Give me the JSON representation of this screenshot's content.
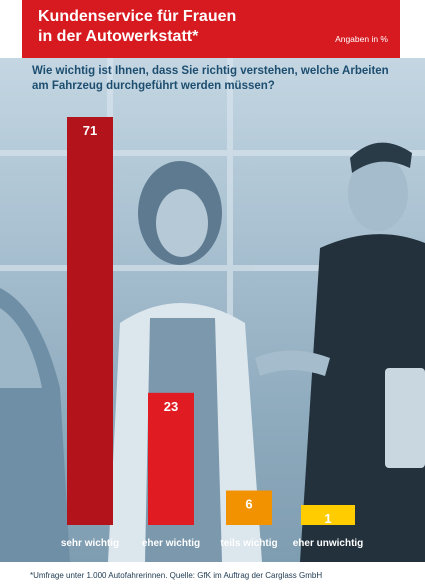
{
  "header": {
    "title_line1": "Kundenservice für Frauen",
    "title_line2": "in der Autowerkstatt*",
    "unit_note": "Angaben in %"
  },
  "question_line1": "Wie wichtig ist Ihnen, dass Sie richtig verstehen, welche Arbeiten",
  "question_line2": "am Fahrzeug durchgeführt werden müssen?",
  "source": "*Umfrage unter 1.000 Autofahrerinnen. Quelle: GfK im Auftrag der Carglass GmbH",
  "colors": {
    "title_bg": "#d71920",
    "bar_1": "#b3141b",
    "bar_2": "#e11b22",
    "bar_3": "#f39200",
    "bar_4": "#ffcc00",
    "question_text": "#1d4e70"
  },
  "chart_data": {
    "type": "bar",
    "categories": [
      "sehr wichtig",
      "eher wichtig",
      "teils wichtig",
      "eher unwichtig"
    ],
    "values": [
      71,
      23,
      6,
      1
    ],
    "data_labels": [
      "71",
      "23",
      "6",
      "1"
    ],
    "unit": "%",
    "ylim": [
      0,
      71
    ],
    "grid": false,
    "legend": "none"
  }
}
